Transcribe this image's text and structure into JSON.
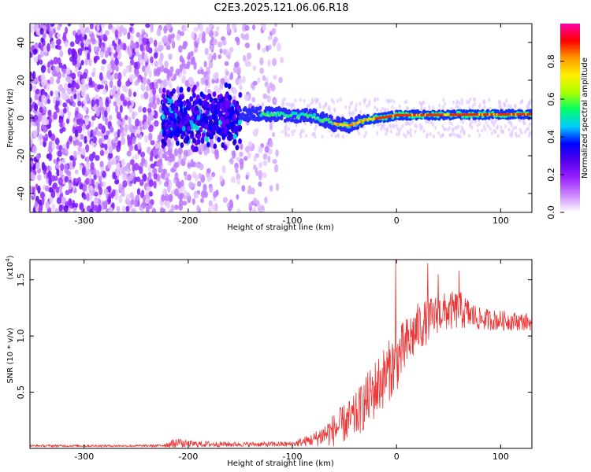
{
  "figure": {
    "title": "C2E3.2025.121.06.06.R18"
  },
  "chart_data": [
    {
      "type": "heatmap",
      "xlabel": "Height of straight line (km)",
      "ylabel": "Frequency (Hz)",
      "xlim": [
        -352,
        130
      ],
      "ylim": [
        -50,
        50
      ],
      "x_ticks": [
        -300,
        -200,
        -100,
        0,
        100
      ],
      "y_ticks": [
        -40,
        -20,
        0,
        20,
        40
      ],
      "colorbar": {
        "label": "Normalized spectral amplitude",
        "range": [
          0,
          1
        ],
        "ticks": [
          "0.0",
          "0.2",
          "0.4",
          "0.6",
          "0.8"
        ],
        "tick_values": [
          0,
          0.2,
          0.4,
          0.6,
          0.8
        ],
        "colors": [
          "#ffffff",
          "#cc88ff",
          "#9922ff",
          "#5500ee",
          "#0000ff",
          "#00ccff",
          "#00ff66",
          "#aaff00",
          "#ffee00",
          "#ff9900",
          "#ff0000",
          "#ff00aa"
        ]
      },
      "features": {
        "noise_region_x": [
          -352,
          -110
        ],
        "cluster_region_x": [
          -225,
          -150
        ],
        "signal_track": [
          {
            "x": -120,
            "y": 2
          },
          {
            "x": -80,
            "y": 1
          },
          {
            "x": -60,
            "y": -3
          },
          {
            "x": -45,
            "y": -4
          },
          {
            "x": -30,
            "y": -1
          },
          {
            "x": -10,
            "y": 0.5
          },
          {
            "x": 0,
            "y": 1.5
          },
          {
            "x": 130,
            "y": 2
          }
        ]
      }
    },
    {
      "type": "line",
      "xlabel": "Height of straight line (km)",
      "ylabel": "SNR (10 * v/v)",
      "multiplier": "(x10",
      "multiplier_exp": "4",
      "multiplier_close": ")",
      "xlim": [
        -352,
        130
      ],
      "ylim": [
        0,
        1.68
      ],
      "x_ticks": [
        -300,
        -200,
        -100,
        0,
        100
      ],
      "y_ticks": [
        "0.5",
        "1.0",
        "1.5"
      ],
      "y_tick_values": [
        0.5,
        1.0,
        1.5
      ],
      "color": "#ee3333",
      "envelope": [
        {
          "x": -352,
          "base": 0.02,
          "amp": 0.02
        },
        {
          "x": -230,
          "base": 0.02,
          "amp": 0.02
        },
        {
          "x": -215,
          "base": 0.03,
          "amp": 0.07
        },
        {
          "x": -150,
          "base": 0.03,
          "amp": 0.04
        },
        {
          "x": -100,
          "base": 0.03,
          "amp": 0.05
        },
        {
          "x": -80,
          "base": 0.06,
          "amp": 0.12
        },
        {
          "x": -60,
          "base": 0.12,
          "amp": 0.3
        },
        {
          "x": -40,
          "base": 0.22,
          "amp": 0.4
        },
        {
          "x": -20,
          "base": 0.45,
          "amp": 0.55
        },
        {
          "x": 0,
          "base": 0.7,
          "amp": 0.55
        },
        {
          "x": 20,
          "base": 1.0,
          "amp": 0.45
        },
        {
          "x": 40,
          "base": 1.15,
          "amp": 0.35
        },
        {
          "x": 60,
          "base": 1.18,
          "amp": 0.35
        },
        {
          "x": 80,
          "base": 1.12,
          "amp": 0.2
        },
        {
          "x": 130,
          "base": 1.1,
          "amp": 0.15
        }
      ],
      "spikes": [
        {
          "x": -1,
          "y": 1.68
        },
        {
          "x": 30,
          "y": 1.65
        },
        {
          "x": 60,
          "y": 1.58
        },
        {
          "x": 40,
          "y": 1.55
        }
      ]
    }
  ]
}
